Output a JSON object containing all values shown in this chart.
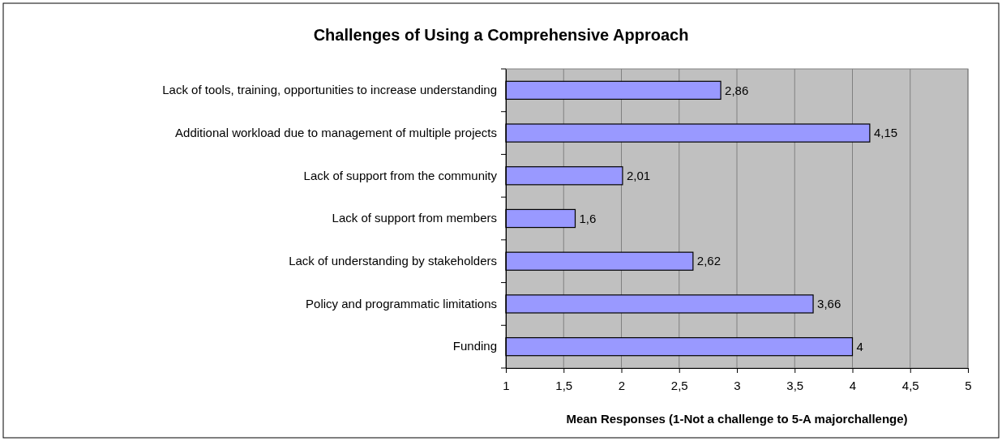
{
  "chart_data": {
    "type": "bar",
    "orientation": "horizontal",
    "title": "Challenges of Using a Comprehensive Approach",
    "xlabel": "Mean Responses (1-Not a challenge to 5-A majorchallenge)",
    "categories": [
      "Lack of tools, training, opportunities to increase understanding",
      "Additional workload due to management of multiple projects",
      "Lack of support from the community",
      "Lack of support from members",
      "Lack of understanding by stakeholders",
      "Policy and programmatic limitations",
      "Funding"
    ],
    "values": [
      2.86,
      4.15,
      2.01,
      1.6,
      2.62,
      3.66,
      4
    ],
    "value_labels": [
      "2,86",
      "4,15",
      "2,01",
      "1,6",
      "2,62",
      "3,66",
      "4"
    ],
    "color": "#9999ff",
    "xlim": [
      1,
      5
    ],
    "xticks": [
      1,
      {
        "value": 1.5,
        "label": "1,5"
      },
      2,
      {
        "value": 2.5,
        "label": "2,5"
      },
      3,
      {
        "value": 3.5,
        "label": "3,5"
      },
      4,
      {
        "value": 4.5,
        "label": "4,5"
      },
      5
    ],
    "grid": "x"
  }
}
